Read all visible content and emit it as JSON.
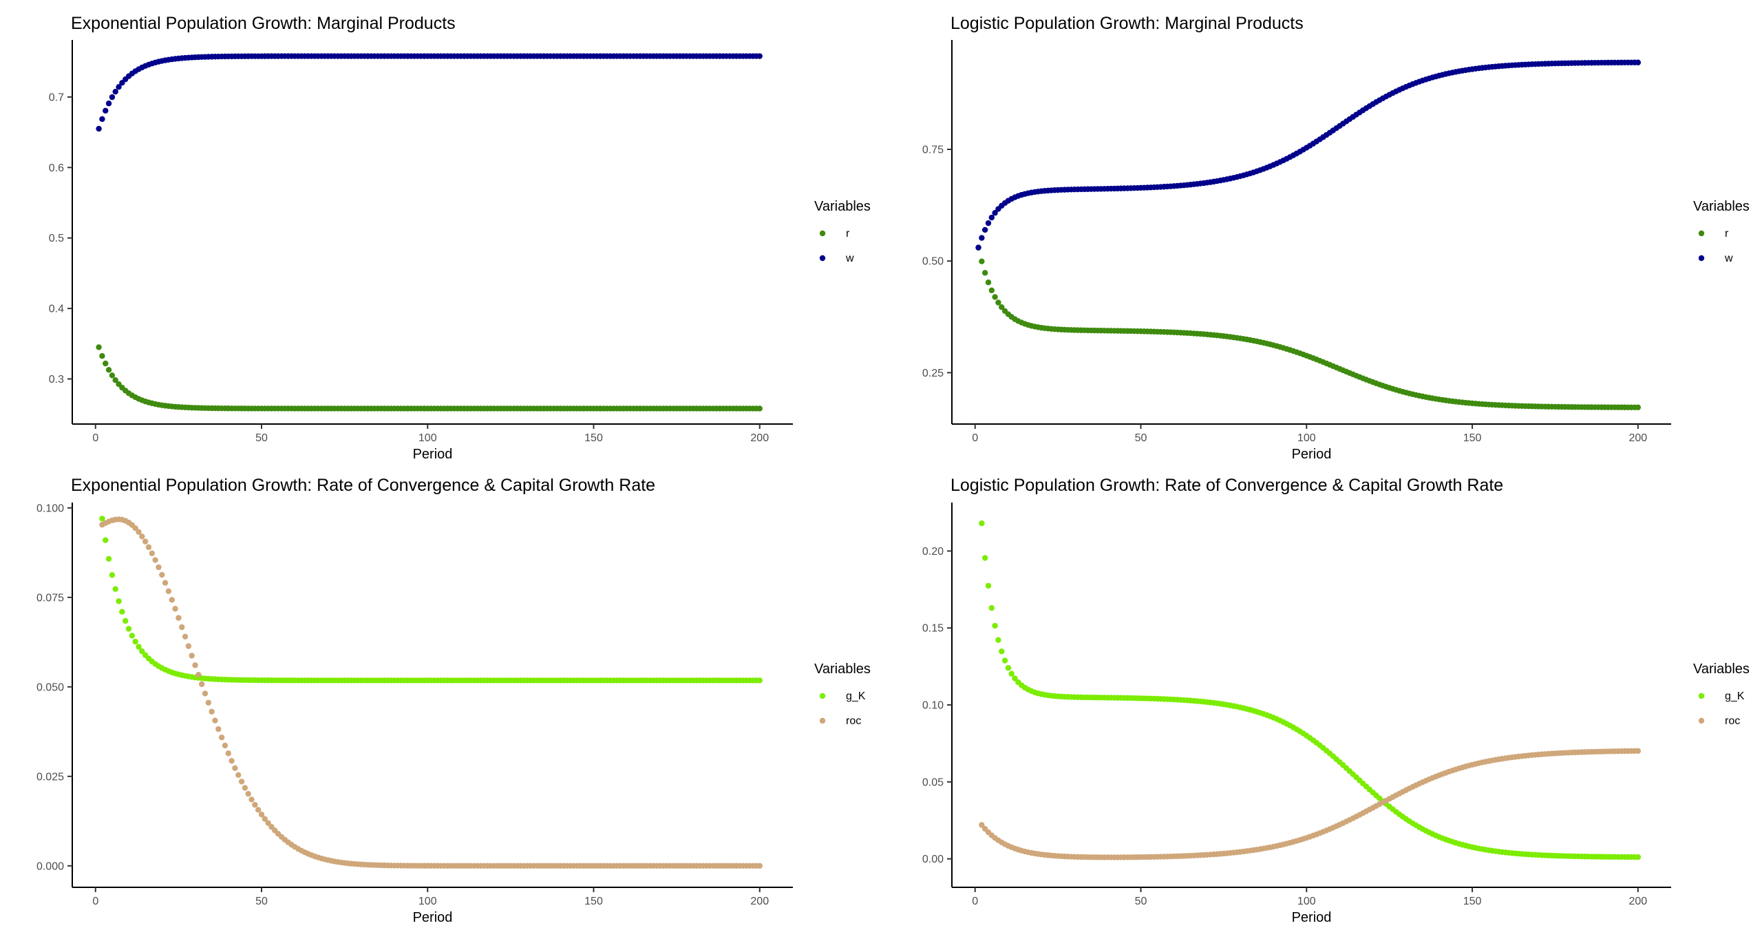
{
  "chart_data": [
    {
      "type": "scatter",
      "title": "Exponential Population Growth: Marginal Products",
      "xlabel": "Period",
      "ylabel": "",
      "xlim": [
        -7,
        210
      ],
      "ylim": [
        0.236,
        0.781
      ],
      "xticks": [
        0,
        50,
        100,
        150,
        200
      ],
      "xtick_labels": [
        "0",
        "50",
        "100",
        "150",
        "200"
      ],
      "yticks": [
        0.3,
        0.4,
        0.5,
        0.6,
        0.7
      ],
      "ytick_labels": [
        "0.3",
        "0.4",
        "0.5",
        "0.6",
        "0.7"
      ],
      "grid": false,
      "legend": {
        "title": "Variables",
        "position": "right"
      },
      "x": {
        "start": 1,
        "end": 200,
        "step": 1
      },
      "series": [
        {
          "name": "r",
          "color": "#3e8b0f",
          "model": "exp",
          "y_start": 0.345,
          "y_end": 0.258,
          "tau": 6.5
        },
        {
          "name": "w",
          "color": "#00008b",
          "model": "exp",
          "y_start": 0.655,
          "y_end": 0.758,
          "tau": 7
        }
      ]
    },
    {
      "type": "scatter",
      "title": "Logistic Population Growth: Marginal Products",
      "xlabel": "Period",
      "ylabel": "",
      "xlim": [
        -7,
        210
      ],
      "ylim": [
        0.135,
        0.995
      ],
      "xticks": [
        0,
        50,
        100,
        150,
        200
      ],
      "xtick_labels": [
        "0",
        "50",
        "100",
        "150",
        "200"
      ],
      "yticks": [
        0.25,
        0.5,
        0.75
      ],
      "ytick_labels": [
        "0.25",
        "0.50",
        "0.75"
      ],
      "grid": false,
      "legend": {
        "title": "Variables",
        "position": "right"
      },
      "x": {
        "start": 1,
        "end": 200,
        "step": 1
      },
      "series": [
        {
          "name": "r",
          "color": "#3e8b0f",
          "model": "twostage",
          "y_start": 0.53,
          "plateau": 0.345,
          "y_end": 0.172,
          "tau": 5.5,
          "mid": 110,
          "width": 14
        },
        {
          "name": "w",
          "color": "#00008b",
          "model": "twostage",
          "y_start": 0.53,
          "plateau": 0.66,
          "y_end": 0.945,
          "tau": 5.5,
          "mid": 110,
          "width": 14
        }
      ]
    },
    {
      "type": "scatter",
      "title": "Exponential Population Growth: Rate of Convergence & Capital Growth Rate",
      "xlabel": "Period",
      "ylabel": "",
      "xlim": [
        -7,
        210
      ],
      "ylim": [
        -0.006,
        0.1015
      ],
      "xticks": [
        0,
        50,
        100,
        150,
        200
      ],
      "xtick_labels": [
        "0",
        "50",
        "100",
        "150",
        "200"
      ],
      "yticks": [
        0.0,
        0.025,
        0.05,
        0.075,
        0.1
      ],
      "ytick_labels": [
        "0.000",
        "0.025",
        "0.050",
        "0.075",
        "0.100"
      ],
      "grid": false,
      "legend": {
        "title": "Variables",
        "position": "right"
      },
      "x": {
        "start": 2,
        "end": 200,
        "step": 1
      },
      "series": [
        {
          "name": "g_K",
          "color": "#7cec00",
          "model": "exp",
          "y_start": 0.097,
          "y_end": 0.0518,
          "tau": 7,
          "x0": 2
        },
        {
          "name": "roc",
          "color": "#cfa77a",
          "model": "hump",
          "y_start": 0.0953,
          "peak": 0.0968,
          "peak_x": 7,
          "width": 22
        }
      ]
    },
    {
      "type": "scatter",
      "title": "Logistic Population Growth: Rate of Convergence & Capital Growth Rate",
      "xlabel": "Period",
      "ylabel": "",
      "xlim": [
        -7,
        210
      ],
      "ylim": [
        -0.0185,
        0.2315
      ],
      "xticks": [
        0,
        50,
        100,
        150,
        200
      ],
      "xtick_labels": [
        "0",
        "50",
        "100",
        "150",
        "200"
      ],
      "yticks": [
        0.0,
        0.05,
        0.1,
        0.15,
        0.2
      ],
      "ytick_labels": [
        "0.00",
        "0.05",
        "0.10",
        "0.15",
        "0.20"
      ],
      "grid": false,
      "legend": {
        "title": "Variables",
        "position": "right"
      },
      "x": {
        "start": 2,
        "end": 200,
        "step": 1
      },
      "series": [
        {
          "name": "g_K",
          "color": "#7cec00",
          "model": "twostage",
          "y_start": 0.218,
          "plateau": 0.105,
          "y_end": 0.001,
          "tau": 4.5,
          "mid": 115,
          "width": 13,
          "x0": 2
        },
        {
          "name": "roc",
          "color": "#cfa77a",
          "model": "dipsig",
          "y_start": 0.022,
          "dip": 0.0005,
          "y_end": 0.0705,
          "tau": 8,
          "mid": 122,
          "width": 15,
          "x0": 2
        }
      ]
    }
  ]
}
